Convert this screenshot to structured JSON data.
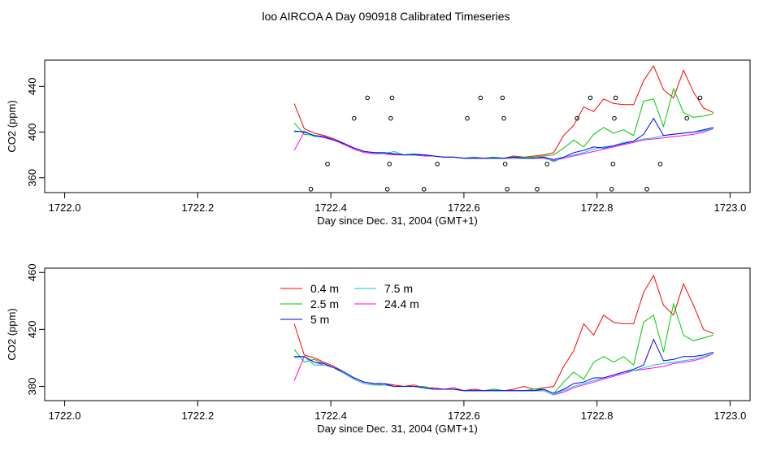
{
  "page_title": "loo AIRCOA A  Day 090918  Calibrated Timeseries",
  "chart_data": [
    {
      "type": "line",
      "xlabel": "Day since Dec. 31, 2004 (GMT+1)",
      "ylabel": "CO2 (ppm)",
      "xlim": [
        1721.97,
        1723.03
      ],
      "ylim": [
        347,
        463
      ],
      "xticks": [
        "1722.0",
        "1722.2",
        "1722.4",
        "1722.6",
        "1722.8",
        "1723.0"
      ],
      "yticks": [
        "360",
        "400",
        "440"
      ],
      "grid": false,
      "x": [
        1722.345,
        1722.36,
        1722.375,
        1722.39,
        1722.405,
        1722.42,
        1722.435,
        1722.45,
        1722.465,
        1722.48,
        1722.495,
        1722.51,
        1722.525,
        1722.54,
        1722.555,
        1722.57,
        1722.585,
        1722.6,
        1722.615,
        1722.63,
        1722.645,
        1722.66,
        1722.675,
        1722.69,
        1722.705,
        1722.72,
        1722.735,
        1722.75,
        1722.765,
        1722.78,
        1722.795,
        1722.81,
        1722.825,
        1722.84,
        1722.855,
        1722.87,
        1722.885,
        1722.9,
        1722.915,
        1722.93,
        1722.945,
        1722.96,
        1722.975
      ],
      "series": [
        {
          "name": "0.4 m",
          "color": "#ff0000",
          "values": [
            425,
            403,
            399,
            397,
            394,
            390,
            386,
            383,
            382,
            381,
            381,
            380,
            381,
            380,
            379,
            378,
            378,
            377,
            378,
            377,
            378,
            377,
            379,
            378,
            379,
            380,
            382,
            397,
            406,
            422,
            418,
            429,
            425,
            424,
            424,
            445,
            458,
            437,
            430,
            454,
            435,
            421,
            417
          ]
        },
        {
          "name": "2.5 m",
          "color": "#00cc00",
          "values": [
            408,
            398,
            397,
            396,
            393,
            390,
            386,
            383,
            382,
            381,
            381,
            380,
            381,
            380,
            379,
            378,
            378,
            377,
            378,
            377,
            378,
            377,
            378,
            378,
            378,
            379,
            380,
            386,
            393,
            387,
            398,
            404,
            399,
            402,
            397,
            427,
            429,
            405,
            438,
            417,
            413,
            414,
            416
          ]
        },
        {
          "name": "5 m",
          "color": "#0000ff",
          "values": [
            401,
            400,
            397,
            396,
            393,
            390,
            386,
            383,
            382,
            382,
            381,
            380,
            380,
            380,
            379,
            378,
            378,
            377,
            377,
            377,
            377,
            377,
            378,
            377,
            377,
            378,
            376,
            378,
            382,
            384,
            387,
            386,
            388,
            390,
            392,
            398,
            412,
            397,
            398,
            399,
            400,
            402,
            404
          ]
        },
        {
          "name": "7.5 m",
          "color": "#00cccc",
          "values": [
            400,
            401,
            396,
            396,
            393,
            390,
            386,
            383,
            382,
            381,
            383,
            380,
            381,
            380,
            379,
            378,
            378,
            377,
            377,
            377,
            377,
            377,
            377,
            377,
            377,
            378,
            374,
            378,
            380,
            382,
            385,
            387,
            388,
            391,
            392,
            394,
            395,
            397,
            398,
            399,
            400,
            401,
            403
          ]
        },
        {
          "name": "24.4 m",
          "color": "#ff00ff",
          "values": [
            384,
            400,
            397,
            395,
            393,
            389,
            385,
            382,
            381,
            381,
            380,
            380,
            380,
            379,
            379,
            378,
            378,
            377,
            377,
            377,
            377,
            377,
            377,
            377,
            377,
            377,
            375,
            377,
            379,
            381,
            383,
            385,
            387,
            389,
            391,
            393,
            394,
            395,
            396,
            397,
            398,
            400,
            403
          ]
        }
      ],
      "points": [
        {
          "x": 1722.37,
          "y": 350
        },
        {
          "x": 1722.395,
          "y": 372
        },
        {
          "x": 1722.435,
          "y": 412
        },
        {
          "x": 1722.455,
          "y": 430
        },
        {
          "x": 1722.485,
          "y": 350
        },
        {
          "x": 1722.488,
          "y": 372
        },
        {
          "x": 1722.49,
          "y": 412
        },
        {
          "x": 1722.492,
          "y": 430
        },
        {
          "x": 1722.54,
          "y": 350
        },
        {
          "x": 1722.56,
          "y": 372
        },
        {
          "x": 1722.605,
          "y": 412
        },
        {
          "x": 1722.625,
          "y": 430
        },
        {
          "x": 1722.658,
          "y": 430
        },
        {
          "x": 1722.66,
          "y": 412
        },
        {
          "x": 1722.662,
          "y": 372
        },
        {
          "x": 1722.665,
          "y": 350
        },
        {
          "x": 1722.71,
          "y": 350
        },
        {
          "x": 1722.725,
          "y": 372
        },
        {
          "x": 1722.77,
          "y": 412
        },
        {
          "x": 1722.79,
          "y": 430
        },
        {
          "x": 1722.822,
          "y": 350
        },
        {
          "x": 1722.824,
          "y": 372
        },
        {
          "x": 1722.826,
          "y": 412
        },
        {
          "x": 1722.828,
          "y": 430
        },
        {
          "x": 1722.875,
          "y": 350
        },
        {
          "x": 1722.895,
          "y": 372
        },
        {
          "x": 1722.935,
          "y": 412
        },
        {
          "x": 1722.955,
          "y": 430
        }
      ]
    },
    {
      "type": "line",
      "xlabel": "Day since Dec. 31, 2004 (GMT+1)",
      "ylabel": "CO2 (ppm)",
      "xlim": [
        1721.97,
        1723.03
      ],
      "ylim": [
        370,
        463
      ],
      "xticks": [
        "1722.0",
        "1722.2",
        "1722.4",
        "1722.6",
        "1722.8",
        "1723.0"
      ],
      "yticks": [
        "380",
        "420",
        "460"
      ],
      "grid": false,
      "legend": "top-center",
      "x": [
        1722.345,
        1722.36,
        1722.375,
        1722.39,
        1722.405,
        1722.42,
        1722.435,
        1722.45,
        1722.465,
        1722.48,
        1722.495,
        1722.51,
        1722.525,
        1722.54,
        1722.555,
        1722.57,
        1722.585,
        1722.6,
        1722.615,
        1722.63,
        1722.645,
        1722.66,
        1722.675,
        1722.69,
        1722.705,
        1722.72,
        1722.735,
        1722.75,
        1722.765,
        1722.78,
        1722.795,
        1722.81,
        1722.825,
        1722.84,
        1722.855,
        1722.87,
        1722.885,
        1722.9,
        1722.915,
        1722.93,
        1722.945,
        1722.96,
        1722.975
      ],
      "series": [
        {
          "name": "0.4 m",
          "color": "#ff0000",
          "values": [
            424,
            402,
            400,
            397,
            394,
            390,
            386,
            383,
            382,
            382,
            381,
            380,
            381,
            379,
            379,
            378,
            379,
            377,
            378,
            377,
            378,
            377,
            378,
            380,
            378,
            379,
            380,
            394,
            405,
            424,
            416,
            430,
            425,
            424,
            424,
            446,
            458,
            437,
            430,
            452,
            437,
            420,
            417
          ]
        },
        {
          "name": "2.5 m",
          "color": "#00cc00",
          "values": [
            406,
            397,
            399,
            396,
            393,
            390,
            386,
            383,
            382,
            381,
            380,
            380,
            380,
            380,
            378,
            378,
            378,
            377,
            377,
            377,
            378,
            377,
            377,
            377,
            378,
            378,
            375,
            383,
            390,
            385,
            397,
            401,
            397,
            401,
            395,
            425,
            430,
            404,
            438,
            416,
            412,
            414,
            416
          ]
        },
        {
          "name": "5 m",
          "color": "#0000ff",
          "values": [
            401,
            401,
            397,
            396,
            393,
            390,
            386,
            383,
            382,
            382,
            380,
            380,
            380,
            379,
            378,
            378,
            378,
            377,
            377,
            377,
            377,
            377,
            377,
            377,
            377,
            378,
            375,
            378,
            382,
            383,
            386,
            386,
            388,
            390,
            392,
            395,
            413,
            398,
            399,
            401,
            401,
            402,
            404
          ]
        },
        {
          "name": "7.5 m",
          "color": "#00cccc",
          "values": [
            400,
            401,
            395,
            395,
            393,
            389,
            385,
            382,
            381,
            381,
            380,
            380,
            380,
            379,
            378,
            378,
            378,
            377,
            377,
            377,
            377,
            377,
            377,
            377,
            377,
            377,
            374,
            377,
            380,
            382,
            384,
            386,
            388,
            390,
            391,
            393,
            395,
            396,
            397,
            398,
            399,
            401,
            403
          ]
        },
        {
          "name": "24.4 m",
          "color": "#ff00ff",
          "values": [
            384,
            401,
            397,
            395,
            393,
            389,
            385,
            382,
            381,
            381,
            380,
            380,
            380,
            379,
            378,
            378,
            378,
            377,
            377,
            377,
            377,
            377,
            377,
            377,
            377,
            377,
            374,
            376,
            379,
            381,
            383,
            385,
            387,
            389,
            391,
            392,
            393,
            394,
            396,
            397,
            398,
            400,
            403
          ]
        }
      ]
    }
  ]
}
